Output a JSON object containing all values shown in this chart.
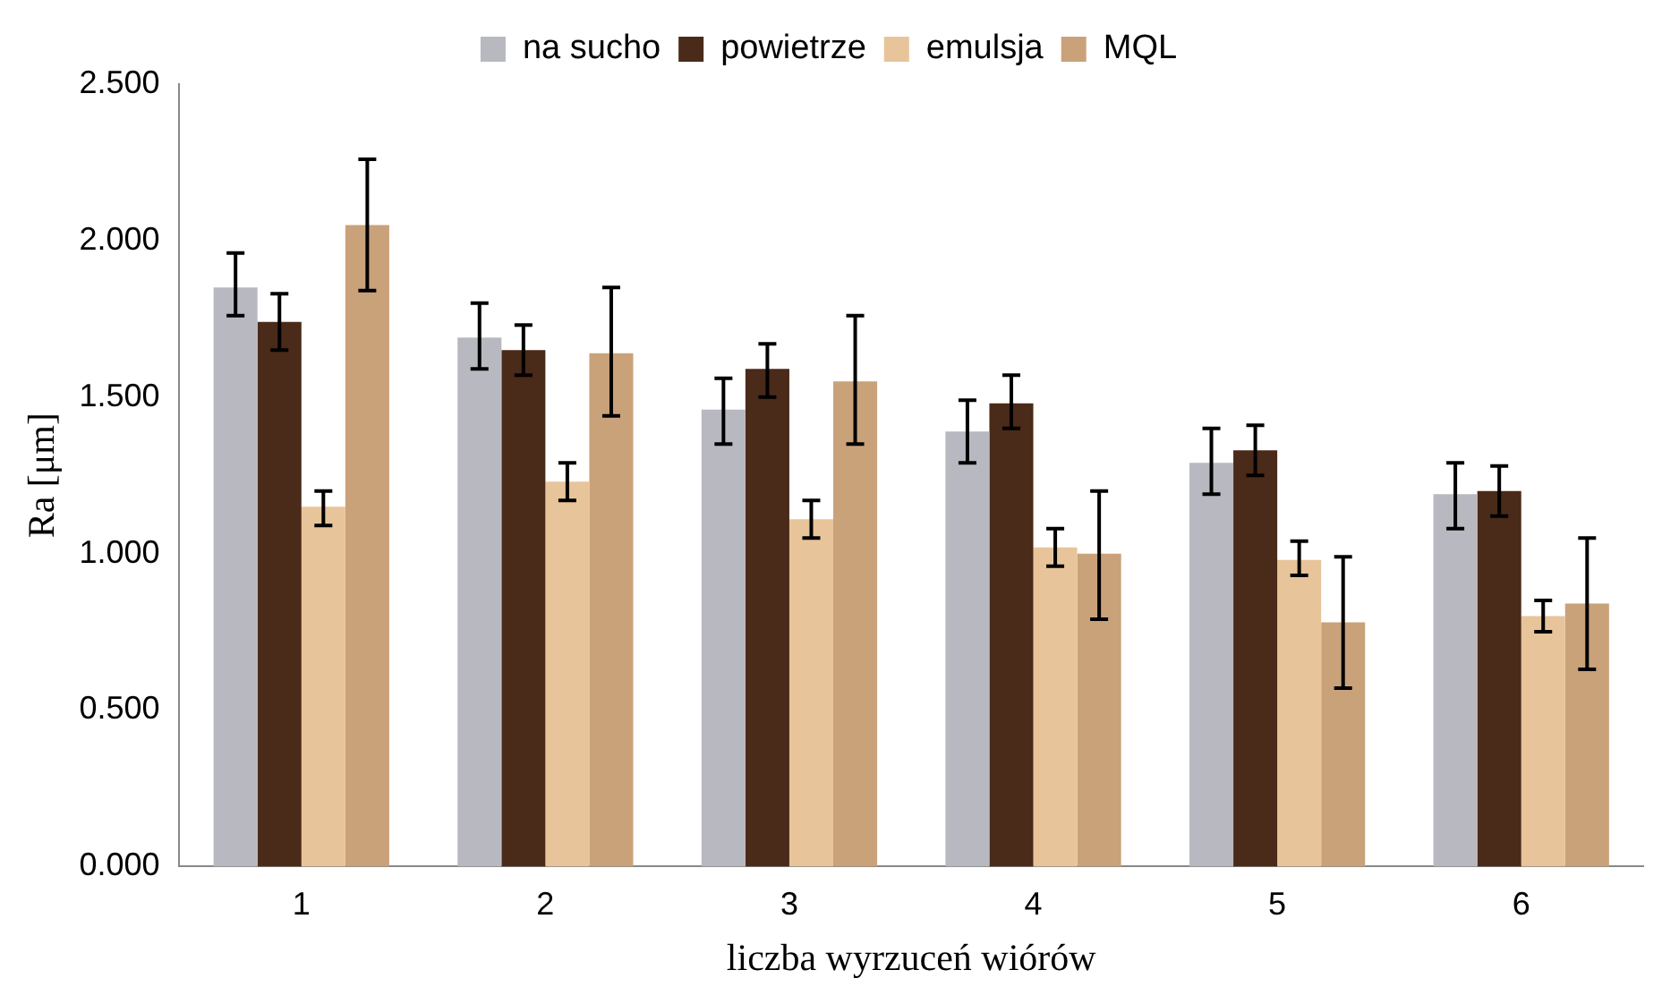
{
  "chart_data": {
    "type": "bar",
    "xlabel": "liczba wyrzuceń wiórów",
    "ylabel": "Ra [μm]",
    "categories": [
      "1",
      "2",
      "3",
      "4",
      "5",
      "6"
    ],
    "ylim": [
      0,
      2.5
    ],
    "yticks": [
      {
        "value": 0,
        "label": "0.000"
      },
      {
        "value": 0.5,
        "label": "0.500"
      },
      {
        "value": 1,
        "label": "1.000"
      },
      {
        "value": 1.5,
        "label": "1.500"
      },
      {
        "value": 2,
        "label": "2.000"
      },
      {
        "value": 2.5,
        "label": "2.500"
      }
    ],
    "grid": false,
    "legend": "top",
    "series": [
      {
        "name": "na sucho",
        "color": "#b8b8c0",
        "values": [
          1.85,
          1.69,
          1.46,
          1.39,
          1.29,
          1.19
        ],
        "errors": [
          [
            1.76,
            1.96
          ],
          [
            1.59,
            1.8
          ],
          [
            1.35,
            1.56
          ],
          [
            1.29,
            1.49
          ],
          [
            1.19,
            1.4
          ],
          [
            1.08,
            1.29
          ]
        ]
      },
      {
        "name": "powietrze",
        "color": "#4a2a18",
        "values": [
          1.74,
          1.65,
          1.59,
          1.48,
          1.33,
          1.2
        ],
        "errors": [
          [
            1.65,
            1.83
          ],
          [
            1.57,
            1.73
          ],
          [
            1.5,
            1.67
          ],
          [
            1.4,
            1.57
          ],
          [
            1.25,
            1.41
          ],
          [
            1.12,
            1.28
          ]
        ]
      },
      {
        "name": "emulsja",
        "color": "#e8c49a",
        "values": [
          1.15,
          1.23,
          1.11,
          1.02,
          0.98,
          0.8
        ],
        "errors": [
          [
            1.09,
            1.2
          ],
          [
            1.17,
            1.29
          ],
          [
            1.05,
            1.17
          ],
          [
            0.96,
            1.08
          ],
          [
            0.93,
            1.04
          ],
          [
            0.75,
            0.85
          ]
        ]
      },
      {
        "name": "MQL",
        "color": "#c9a27a",
        "values": [
          2.05,
          1.64,
          1.55,
          1.0,
          0.78,
          0.84
        ],
        "errors": [
          [
            1.84,
            2.26
          ],
          [
            1.44,
            1.85
          ],
          [
            1.35,
            1.76
          ],
          [
            0.79,
            1.2
          ],
          [
            0.57,
            0.99
          ],
          [
            0.63,
            1.05
          ]
        ]
      }
    ]
  }
}
